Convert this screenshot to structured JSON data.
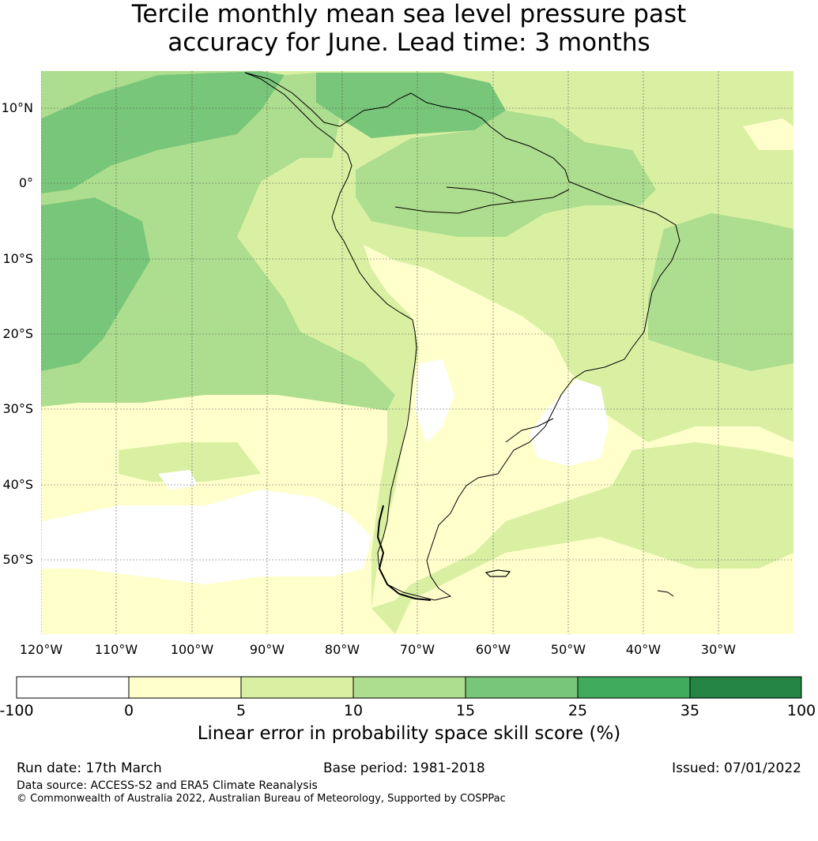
{
  "title": {
    "line1": "Tercile monthly mean sea level pressure past",
    "line2": "accuracy for June. Lead time: 3 months"
  },
  "map": {
    "region": "South America",
    "lat_ticks": [
      "10°N",
      "0°",
      "10°S",
      "20°S",
      "30°S",
      "40°S",
      "50°S"
    ],
    "lon_ticks": [
      "120°W",
      "110°W",
      "100°W",
      "90°W",
      "80°W",
      "70°W",
      "60°W",
      "50°W",
      "40°W",
      "30°W"
    ],
    "gridlines": true,
    "coastlines_color": "#000000"
  },
  "colorbar": {
    "label": "Linear error in probability space skill score (%)",
    "tick_labels": [
      "-100",
      "0",
      "5",
      "10",
      "15",
      "25",
      "35",
      "100"
    ],
    "bins": [
      {
        "from": -100,
        "to": 0,
        "color": "#ffffff"
      },
      {
        "from": 0,
        "to": 5,
        "color": "#ffffcc"
      },
      {
        "from": 5,
        "to": 10,
        "color": "#d9f0a3"
      },
      {
        "from": 10,
        "to": 15,
        "color": "#addd8e"
      },
      {
        "from": 15,
        "to": 25,
        "color": "#78c679"
      },
      {
        "from": 25,
        "to": 35,
        "color": "#41ab5d"
      },
      {
        "from": 35,
        "to": 100,
        "color": "#238443"
      }
    ]
  },
  "footer": {
    "run_date": "Run date: 17th March",
    "base_period": "Base period: 1981-2018",
    "issued": "Issued: 07/01/2022",
    "data_source": "Data source: ACCESS-S2 and ERA5 Climate Reanalysis",
    "copyright": "© Commonwealth of Australia 2022, Australian Bureau of Meteorology, Supported by COSPPac"
  }
}
